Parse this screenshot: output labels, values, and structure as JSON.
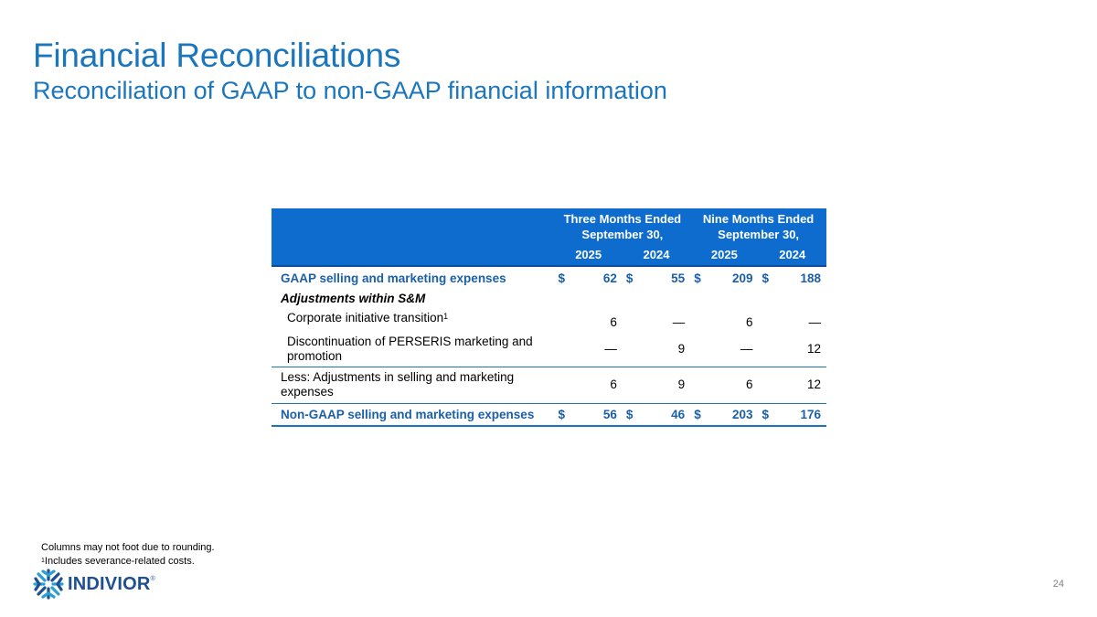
{
  "header": {
    "title": "Financial Reconciliations",
    "subtitle": "Reconciliation of GAAP to non-GAAP financial information"
  },
  "table": {
    "group_headers": [
      {
        "line1": "Three Months Ended",
        "line2": "September 30,"
      },
      {
        "line1": "Nine Months Ended",
        "line2": "September 30,"
      }
    ],
    "year_headers": [
      "2025",
      "2024",
      "2025",
      "2024"
    ],
    "rows": {
      "gaap": {
        "label": "GAAP selling and marketing expenses",
        "sym": "$",
        "values": [
          "62",
          "55",
          "209",
          "188"
        ]
      },
      "adj_heading": {
        "label": "Adjustments within S&M"
      },
      "corporate": {
        "label": "Corporate initiative transition",
        "footnote_mark": "1",
        "values": [
          "6",
          "—",
          "6",
          "—"
        ]
      },
      "discontinuation": {
        "label": "Discontinuation of PERSERIS marketing and promotion",
        "values": [
          "—",
          "9",
          "—",
          "12"
        ]
      },
      "less": {
        "label": "Less: Adjustments in selling and marketing expenses",
        "values": [
          "6",
          "9",
          "6",
          "12"
        ]
      },
      "nongaap": {
        "label": "Non-GAAP selling and marketing expenses",
        "sym": "$",
        "values": [
          "56",
          "46",
          "203",
          "176"
        ]
      }
    }
  },
  "footnotes": {
    "line1": "Columns may not foot due to rounding.",
    "line2_mark": "1",
    "line2": "Includes severance-related costs."
  },
  "logo": {
    "text": "INDIVIOR",
    "reg": "®",
    "color": "#1d4f91"
  },
  "page_number": "24",
  "colors": {
    "accent": "#1b76bc",
    "header_fill": "#0e6ccf"
  }
}
